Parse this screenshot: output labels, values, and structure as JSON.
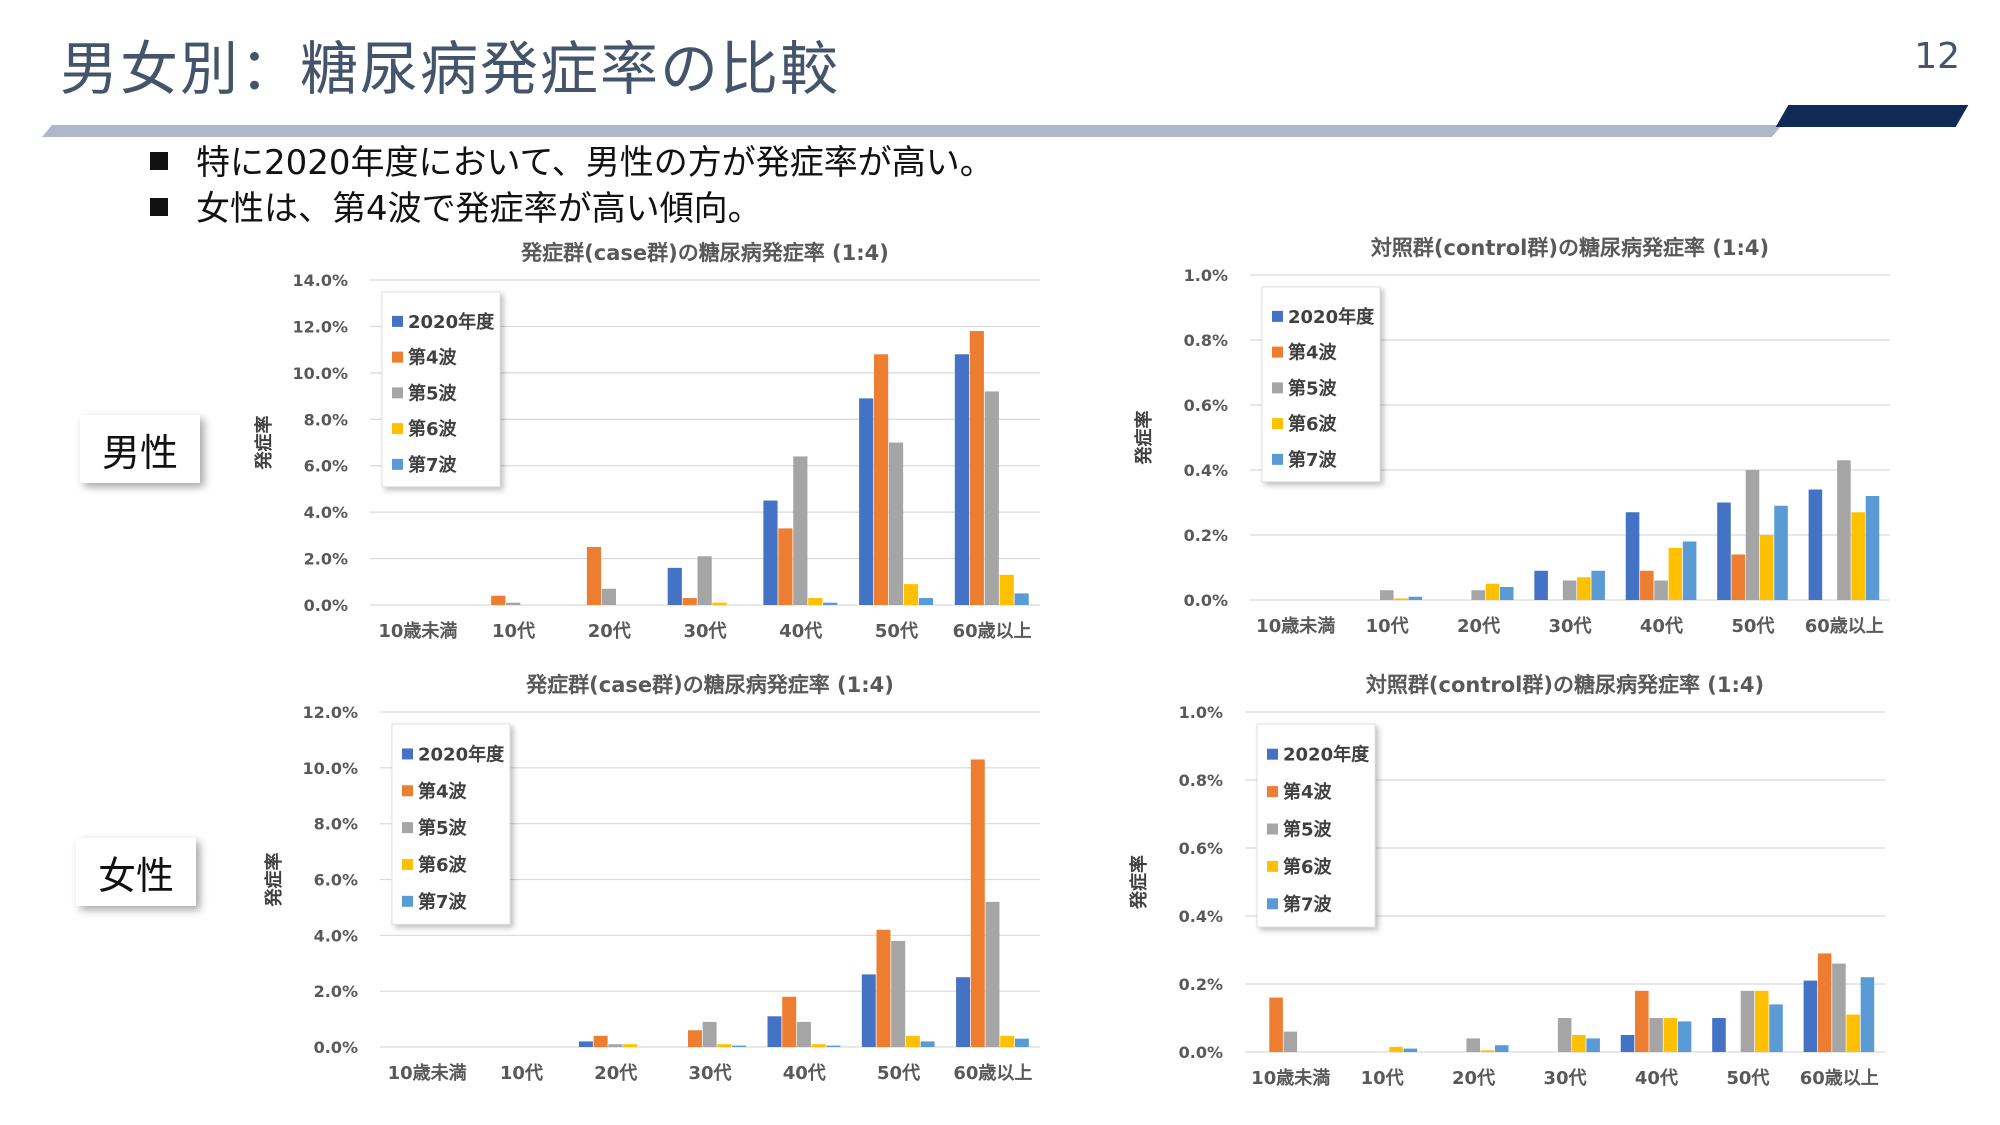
{
  "slide": {
    "title": "男女別：糖尿病発症率の比較",
    "page_number": "12"
  },
  "bullets": [
    "特に2020年度において、男性の方が発症率が高い。",
    "女性は、第4波で発症率が高い傾向。"
  ],
  "gender_labels": {
    "male": "男性",
    "female": "女性"
  },
  "colors": {
    "2020年度": "#4472c4",
    "第4波": "#ed7d31",
    "第5波": "#a5a5a5",
    "第6波": "#ffc000",
    "第7波": "#5b9bd5",
    "title_text": "#44546a",
    "title_bar_dark": "#0f2a55",
    "title_bar_light": "#adb9ca"
  },
  "chart_data": [
    {
      "type": "bar",
      "title": "発症群(case群)の糖尿病発症率 (1:4)",
      "ylabel": "発症率",
      "ylim": [
        0,
        14
      ],
      "yticks": [
        "0.0%",
        "2.0%",
        "4.0%",
        "6.0%",
        "8.0%",
        "10.0%",
        "12.0%",
        "14.0%"
      ],
      "yunit": "%",
      "categories": [
        "10歳未満",
        "10代",
        "20代",
        "30代",
        "40代",
        "50代",
        "60歳以上"
      ],
      "grid": true,
      "legend": "top-left",
      "series": [
        {
          "name": "2020年度",
          "values": [
            0,
            0,
            0,
            1.6,
            4.5,
            8.9,
            10.8
          ]
        },
        {
          "name": "第4波",
          "values": [
            0,
            0.4,
            2.5,
            0.3,
            3.3,
            10.8,
            11.8
          ]
        },
        {
          "name": "第5波",
          "values": [
            0,
            0.1,
            0.7,
            2.1,
            6.4,
            7.0,
            9.2
          ]
        },
        {
          "name": "第6波",
          "values": [
            0,
            0,
            0,
            0.1,
            0.3,
            0.9,
            1.3
          ]
        },
        {
          "name": "第7波",
          "values": [
            0,
            0,
            0,
            0,
            0.1,
            0.3,
            0.5
          ]
        }
      ]
    },
    {
      "type": "bar",
      "title": "対照群(control群)の糖尿病発症率 (1:4)",
      "ylabel": "発症率",
      "ylim": [
        0,
        1.0
      ],
      "yticks": [
        "0.0%",
        "0.2%",
        "0.4%",
        "0.6%",
        "0.8%",
        "1.0%"
      ],
      "yunit": "%",
      "categories": [
        "10歳未満",
        "10代",
        "20代",
        "30代",
        "40代",
        "50代",
        "60歳以上"
      ],
      "grid": true,
      "legend": "top-left",
      "series": [
        {
          "name": "2020年度",
          "values": [
            0,
            0,
            0,
            0.09,
            0.27,
            0.3,
            0.34
          ]
        },
        {
          "name": "第4波",
          "values": [
            0,
            0,
            0,
            0,
            0.09,
            0.14,
            0
          ]
        },
        {
          "name": "第5波",
          "values": [
            0,
            0.03,
            0.03,
            0.06,
            0.06,
            0.4,
            0.43
          ]
        },
        {
          "name": "第6波",
          "values": [
            0,
            0.005,
            0.05,
            0.07,
            0.16,
            0.2,
            0.27
          ]
        },
        {
          "name": "第7波",
          "values": [
            0,
            0.01,
            0.04,
            0.09,
            0.18,
            0.29,
            0.32
          ]
        }
      ]
    },
    {
      "type": "bar",
      "title": "発症群(case群)の糖尿病発症率 (1:4)",
      "ylabel": "発症率",
      "ylim": [
        0,
        12
      ],
      "yticks": [
        "0.0%",
        "2.0%",
        "4.0%",
        "6.0%",
        "8.0%",
        "10.0%",
        "12.0%"
      ],
      "yunit": "%",
      "categories": [
        "10歳未満",
        "10代",
        "20代",
        "30代",
        "40代",
        "50代",
        "60歳以上"
      ],
      "grid": true,
      "legend": "top-left",
      "series": [
        {
          "name": "2020年度",
          "values": [
            0,
            0,
            0.2,
            0,
            1.1,
            2.6,
            2.5
          ]
        },
        {
          "name": "第4波",
          "values": [
            0,
            0,
            0.4,
            0.6,
            1.8,
            4.2,
            10.3
          ]
        },
        {
          "name": "第5波",
          "values": [
            0,
            0,
            0.1,
            0.9,
            0.9,
            3.8,
            5.2
          ]
        },
        {
          "name": "第6波",
          "values": [
            0,
            0,
            0.1,
            0.1,
            0.1,
            0.4,
            0.4
          ]
        },
        {
          "name": "第7波",
          "values": [
            0,
            0,
            0,
            0.05,
            0.05,
            0.2,
            0.3
          ]
        }
      ]
    },
    {
      "type": "bar",
      "title": "対照群(control群)の糖尿病発症率 (1:4)",
      "ylabel": "発症率",
      "ylim": [
        0,
        1.0
      ],
      "yticks": [
        "0.0%",
        "0.2%",
        "0.4%",
        "0.6%",
        "0.8%",
        "1.0%"
      ],
      "yunit": "%",
      "categories": [
        "10歳未満",
        "10代",
        "20代",
        "30代",
        "40代",
        "50代",
        "60歳以上"
      ],
      "grid": true,
      "legend": "top-left",
      "series": [
        {
          "name": "2020年度",
          "values": [
            0,
            0,
            0,
            0,
            0.05,
            0.1,
            0.21
          ]
        },
        {
          "name": "第4波",
          "values": [
            0.16,
            0,
            0,
            0,
            0.18,
            0,
            0.29
          ]
        },
        {
          "name": "第5波",
          "values": [
            0.06,
            0,
            0.04,
            0.1,
            0.1,
            0.18,
            0.26
          ]
        },
        {
          "name": "第6波",
          "values": [
            0,
            0.015,
            0.005,
            0.05,
            0.1,
            0.18,
            0.11
          ]
        },
        {
          "name": "第7波",
          "values": [
            0,
            0.01,
            0.02,
            0.04,
            0.09,
            0.14,
            0.22
          ]
        }
      ]
    }
  ]
}
